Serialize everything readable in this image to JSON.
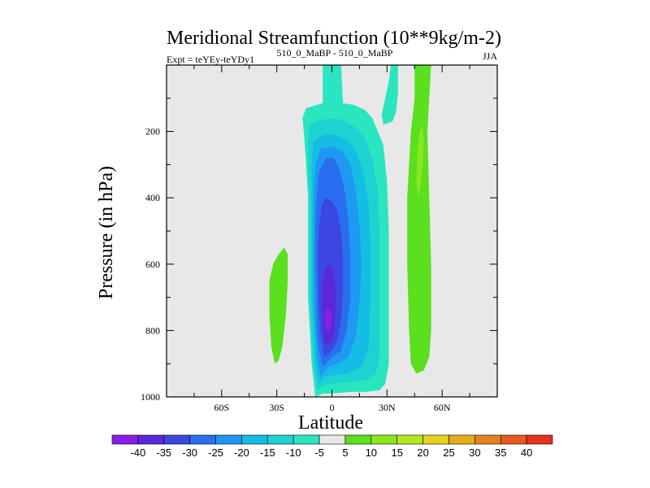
{
  "chart_data": {
    "type": "heatmap",
    "title": "Meridional Streamfunction (10**9kg/m-2)",
    "subtitle_left": "Expt = teYEy-teYDy1",
    "subtitle_center": "510_0_MaBP - 510_0_MaBP",
    "subtitle_right": "JJA",
    "xlabel": "Latitude",
    "ylabel": "Pressure (in hPa)",
    "xlim": [
      -90,
      90
    ],
    "ylim": [
      1000,
      0
    ],
    "x_ticks": [
      -60,
      -30,
      0,
      30,
      60
    ],
    "x_tick_labels": [
      "60S",
      "30S",
      "0",
      "30N",
      "60N"
    ],
    "y_ticks": [
      200,
      400,
      600,
      800,
      1000
    ],
    "y_tick_labels": [
      "200",
      "400",
      "600",
      "800",
      "1000"
    ],
    "background_color": "#e8e8e8",
    "colorbar": {
      "labels": [
        "-40",
        "-35",
        "-30",
        "-25",
        "-20",
        "-15",
        "-10",
        "-5",
        "5",
        "10",
        "15",
        "20",
        "25",
        "30",
        "35",
        "40"
      ],
      "colors": [
        "#8a1ee6",
        "#5a28d8",
        "#3c46e0",
        "#2a6ef0",
        "#1e98f0",
        "#14bce6",
        "#1ed2d2",
        "#2ae6c0",
        "#e8e8e8",
        "#5ae01e",
        "#8ce61e",
        "#b4e61e",
        "#e6d21e",
        "#e6aa1e",
        "#e6821e",
        "#e65a1e",
        "#e6321e"
      ]
    },
    "contour_regions": [
      {
        "name": "tropical-cell-level-minus5",
        "level": -5,
        "color": "#2ae6c0",
        "points": [
          [
            -9,
            1000
          ],
          [
            -10,
            950
          ],
          [
            -11,
            900
          ],
          [
            -12,
            800
          ],
          [
            -13,
            700
          ],
          [
            -13,
            600
          ],
          [
            -13,
            500
          ],
          [
            -13,
            400
          ],
          [
            -14,
            300
          ],
          [
            -15,
            220
          ],
          [
            -16,
            160
          ],
          [
            -14,
            130
          ],
          [
            -8,
            120
          ],
          [
            -5,
            115
          ],
          [
            -5,
            0
          ],
          [
            5,
            0
          ],
          [
            6,
            115
          ],
          [
            12,
            120
          ],
          [
            18,
            135
          ],
          [
            22,
            160
          ],
          [
            28,
            240
          ],
          [
            30,
            350
          ],
          [
            31,
            500
          ],
          [
            31,
            700
          ],
          [
            31,
            900
          ],
          [
            29,
            960
          ],
          [
            26,
            980
          ],
          [
            18,
            985
          ],
          [
            10,
            985
          ],
          [
            0,
            990
          ],
          [
            -5,
            990
          ]
        ]
      },
      {
        "name": "tropical-cell-level-minus10",
        "level": -10,
        "color": "#1ed2d2",
        "points": [
          [
            -8,
            980
          ],
          [
            -10,
            900
          ],
          [
            -11,
            800
          ],
          [
            -12,
            700
          ],
          [
            -12,
            600
          ],
          [
            -12,
            500
          ],
          [
            -12,
            400
          ],
          [
            -13,
            300
          ],
          [
            -13,
            220
          ],
          [
            -12,
            180
          ],
          [
            -6,
            165
          ],
          [
            0,
            160
          ],
          [
            6,
            165
          ],
          [
            12,
            185
          ],
          [
            18,
            220
          ],
          [
            22,
            280
          ],
          [
            25,
            380
          ],
          [
            26,
            500
          ],
          [
            26,
            700
          ],
          [
            26,
            880
          ],
          [
            24,
            930
          ],
          [
            18,
            950
          ],
          [
            10,
            955
          ],
          [
            0,
            960
          ],
          [
            -5,
            965
          ]
        ]
      },
      {
        "name": "tropical-cell-level-minus15",
        "level": -15,
        "color": "#14bce6",
        "points": [
          [
            -7,
            960
          ],
          [
            -9,
            900
          ],
          [
            -10,
            800
          ],
          [
            -11,
            700
          ],
          [
            -11,
            600
          ],
          [
            -11,
            500
          ],
          [
            -11,
            400
          ],
          [
            -11,
            300
          ],
          [
            -10,
            230
          ],
          [
            -4,
            210
          ],
          [
            2,
            210
          ],
          [
            8,
            225
          ],
          [
            13,
            260
          ],
          [
            17,
            320
          ],
          [
            20,
            420
          ],
          [
            21,
            550
          ],
          [
            21,
            700
          ],
          [
            20,
            850
          ],
          [
            16,
            910
          ],
          [
            8,
            930
          ],
          [
            0,
            935
          ],
          [
            -4,
            940
          ]
        ]
      },
      {
        "name": "tropical-cell-level-minus20",
        "level": -20,
        "color": "#1e98f0",
        "points": [
          [
            -6,
            940
          ],
          [
            -8,
            880
          ],
          [
            -9,
            800
          ],
          [
            -10,
            700
          ],
          [
            -10,
            600
          ],
          [
            -10,
            500
          ],
          [
            -10,
            400
          ],
          [
            -9,
            300
          ],
          [
            -6,
            250
          ],
          [
            0,
            245
          ],
          [
            6,
            260
          ],
          [
            10,
            300
          ],
          [
            13,
            380
          ],
          [
            15,
            480
          ],
          [
            16,
            600
          ],
          [
            15,
            720
          ],
          [
            13,
            820
          ],
          [
            9,
            880
          ],
          [
            3,
            900
          ],
          [
            -2,
            910
          ]
        ]
      },
      {
        "name": "tropical-cell-level-minus25",
        "level": -25,
        "color": "#2a6ef0",
        "points": [
          [
            -5,
            910
          ],
          [
            -7,
            860
          ],
          [
            -8,
            800
          ],
          [
            -8.5,
            700
          ],
          [
            -9,
            600
          ],
          [
            -9,
            500
          ],
          [
            -8.5,
            400
          ],
          [
            -7,
            320
          ],
          [
            -3,
            280
          ],
          [
            1,
            280
          ],
          [
            4,
            310
          ],
          [
            7,
            380
          ],
          [
            9,
            470
          ],
          [
            10,
            580
          ],
          [
            10,
            700
          ],
          [
            8,
            800
          ],
          [
            5,
            860
          ],
          [
            0,
            880
          ]
        ]
      },
      {
        "name": "tropical-cell-level-minus30",
        "level": -30,
        "color": "#3c46e0",
        "points": [
          [
            -4,
            880
          ],
          [
            -6,
            820
          ],
          [
            -7,
            740
          ],
          [
            -7.5,
            650
          ],
          [
            -7.5,
            560
          ],
          [
            -7,
            480
          ],
          [
            -5.5,
            420
          ],
          [
            -3,
            400
          ],
          [
            0,
            410
          ],
          [
            3,
            440
          ],
          [
            5,
            500
          ],
          [
            6,
            580
          ],
          [
            6,
            680
          ],
          [
            5,
            770
          ],
          [
            3,
            830
          ],
          [
            0,
            860
          ]
        ]
      },
      {
        "name": "tropical-cell-level-minus35",
        "level": -35,
        "color": "#5a28d8",
        "points": [
          [
            -4,
            840
          ],
          [
            -5,
            780
          ],
          [
            -5.5,
            710
          ],
          [
            -5,
            650
          ],
          [
            -3.5,
            610
          ],
          [
            -1,
            600
          ],
          [
            1,
            620
          ],
          [
            2,
            680
          ],
          [
            2,
            750
          ],
          [
            1,
            810
          ],
          [
            -1,
            840
          ]
        ]
      },
      {
        "name": "tropical-cell-level-minus40",
        "level": -40,
        "color": "#8a1ee6",
        "points": [
          [
            -3,
            800
          ],
          [
            -4,
            760
          ],
          [
            -3,
            730
          ],
          [
            -1,
            735
          ],
          [
            0,
            765
          ],
          [
            -1,
            795
          ]
        ]
      },
      {
        "name": "subtropical-top-strip-left",
        "level": -5,
        "color": "#2ae6c0",
        "points": [
          [
            32,
            0
          ],
          [
            36,
            0
          ],
          [
            36,
            80
          ],
          [
            35,
            140
          ],
          [
            33,
            170
          ],
          [
            28,
            180
          ],
          [
            27,
            150
          ],
          [
            29,
            100
          ],
          [
            31,
            50
          ]
        ]
      },
      {
        "name": "southern-cell-level-10",
        "level": 10,
        "color": "#5ae01e",
        "points": [
          [
            -31,
            900
          ],
          [
            -33,
            850
          ],
          [
            -34,
            750
          ],
          [
            -34,
            650
          ],
          [
            -32,
            600
          ],
          [
            -29,
            570
          ],
          [
            -26,
            550
          ],
          [
            -24,
            570
          ],
          [
            -24,
            650
          ],
          [
            -25,
            750
          ],
          [
            -27,
            850
          ],
          [
            -29,
            890
          ]
        ]
      },
      {
        "name": "northern-cell-level-10",
        "level": 10,
        "color": "#5ae01e",
        "points": [
          [
            45,
            0
          ],
          [
            54,
            0
          ],
          [
            53,
            100
          ],
          [
            52,
            200
          ],
          [
            53,
            400
          ],
          [
            54,
            600
          ],
          [
            54,
            800
          ],
          [
            53,
            880
          ],
          [
            50,
            920
          ],
          [
            46,
            930
          ],
          [
            43,
            900
          ],
          [
            42,
            800
          ],
          [
            41,
            600
          ],
          [
            41,
            400
          ],
          [
            43,
            200
          ],
          [
            45,
            100
          ]
        ]
      },
      {
        "name": "northern-cell-level-15",
        "level": 15,
        "color": "#8ce61e",
        "points": [
          [
            49,
            180
          ],
          [
            50,
            230
          ],
          [
            49.5,
            300
          ],
          [
            48.5,
            350
          ],
          [
            47,
            400
          ],
          [
            46,
            350
          ],
          [
            46.5,
            270
          ],
          [
            47.5,
            210
          ]
        ]
      }
    ]
  }
}
